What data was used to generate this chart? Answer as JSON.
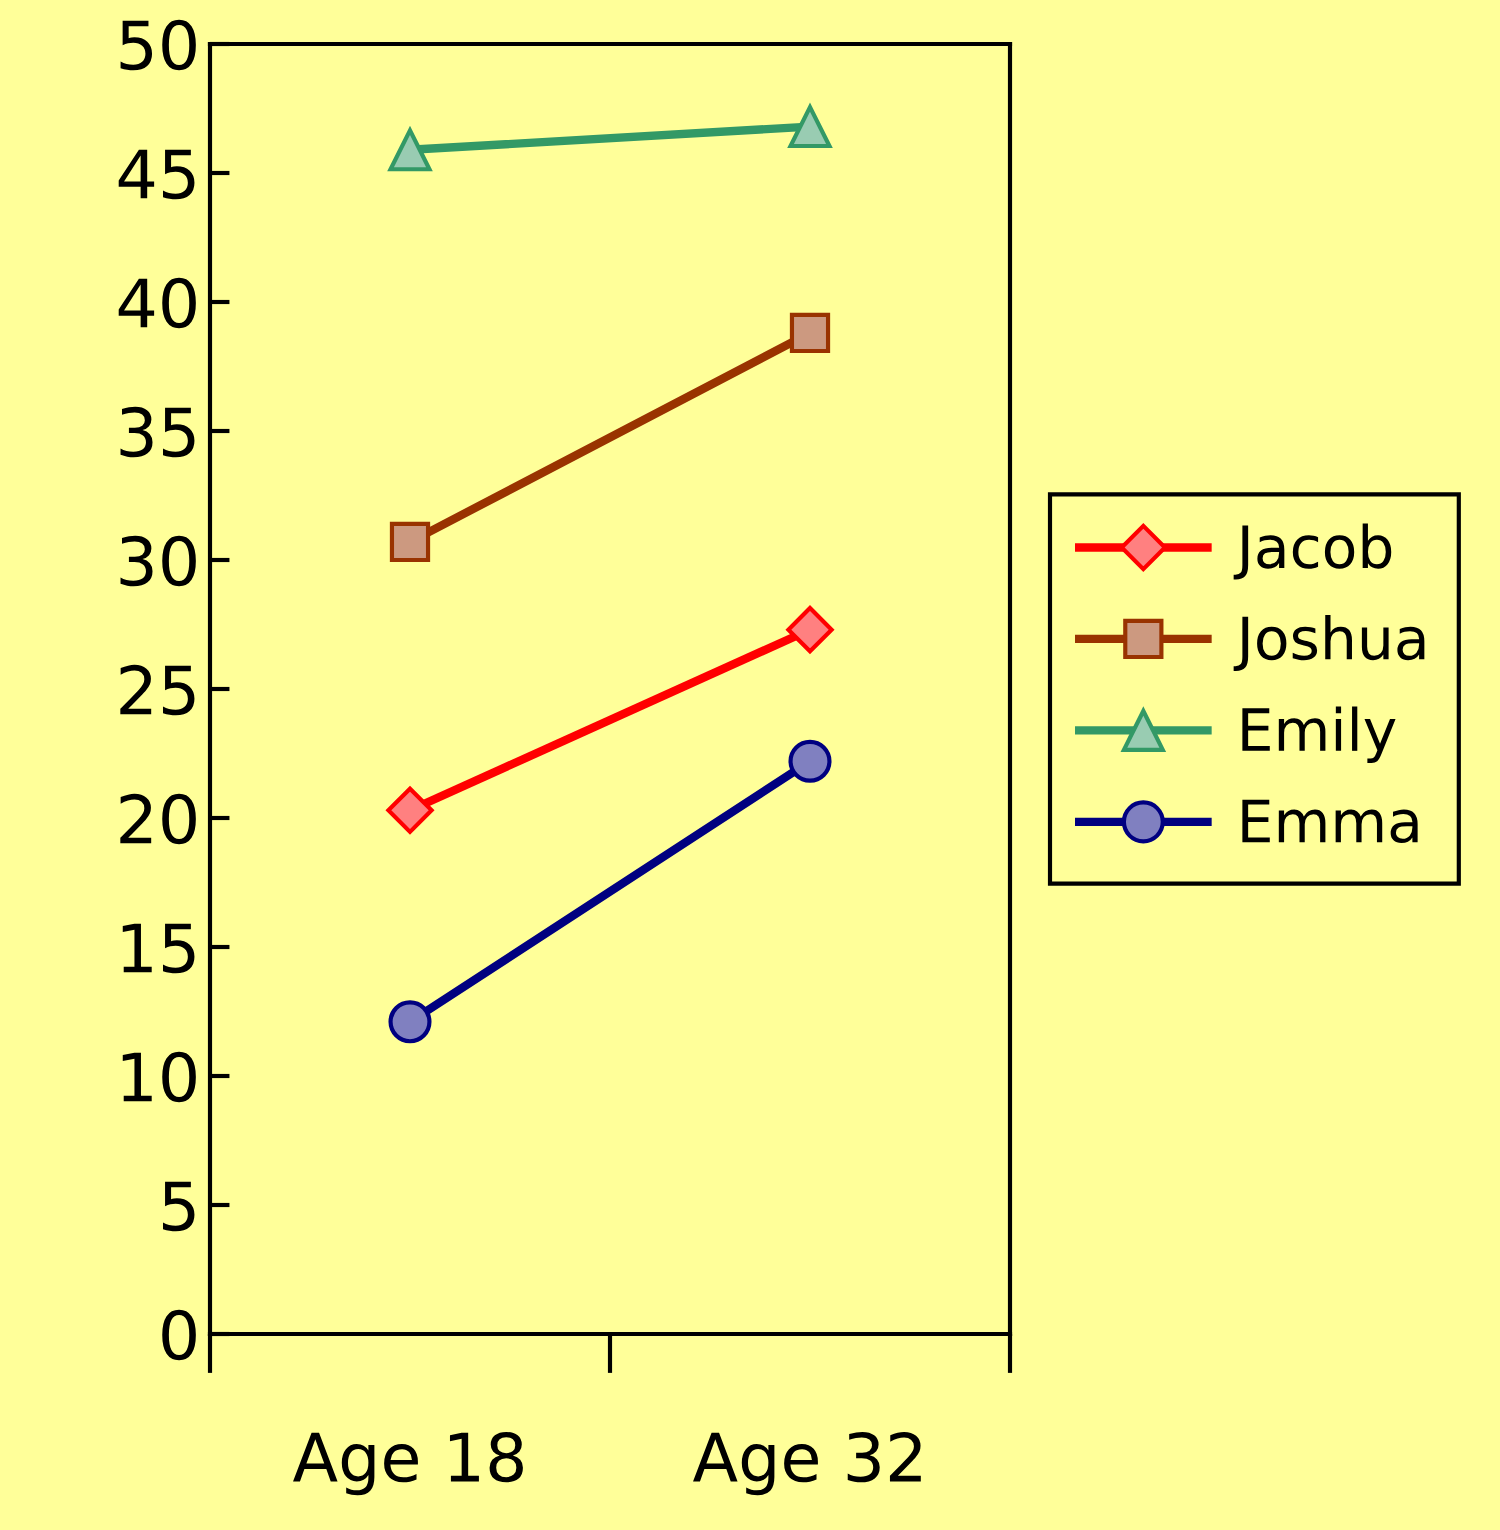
{
  "chart_data": {
    "type": "line",
    "categories": [
      "Age 18",
      "Age 32"
    ],
    "series": [
      {
        "name": "Jacob",
        "color": "#ff0000",
        "marker": "diamond",
        "values": [
          20.3,
          27.3
        ]
      },
      {
        "name": "Joshua",
        "color": "#993300",
        "marker": "square",
        "values": [
          30.7,
          38.8
        ]
      },
      {
        "name": "Emily",
        "color": "#339966",
        "marker": "triangle",
        "values": [
          45.9,
          46.8
        ]
      },
      {
        "name": "Emma",
        "color": "#000080",
        "marker": "circle",
        "values": [
          12.1,
          22.2
        ]
      }
    ],
    "ylim": [
      0,
      50
    ],
    "yticks": [
      0,
      5,
      10,
      15,
      20,
      25,
      30,
      35,
      40,
      45,
      50
    ],
    "grid": false,
    "legend": "right",
    "line_style": "solid"
  }
}
